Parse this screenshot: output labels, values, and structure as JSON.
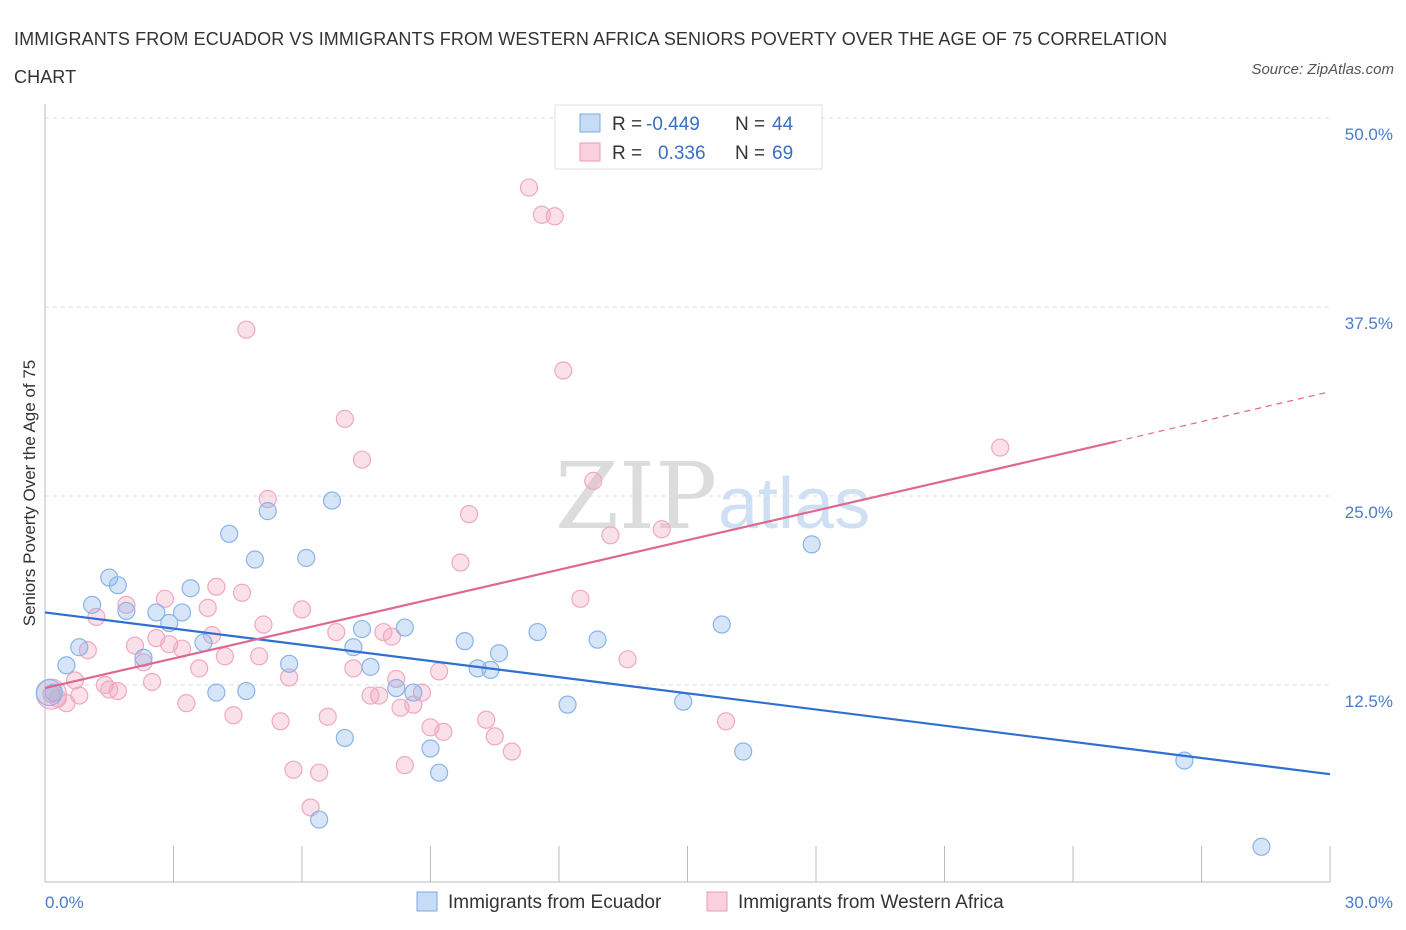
{
  "title": "IMMIGRANTS FROM ECUADOR VS IMMIGRANTS FROM WESTERN AFRICA SENIORS POVERTY OVER THE AGE OF 75 CORRELATION CHART",
  "source": "Source: ZipAtlas.com",
  "watermark": {
    "zip": "ZIP",
    "atlas": "atlas"
  },
  "chart_data": {
    "type": "scatter",
    "title": "IMMIGRANTS FROM ECUADOR VS IMMIGRANTS FROM WESTERN AFRICA SENIORS POVERTY OVER THE AGE OF 75 CORRELATION CHART",
    "xlabel": "",
    "ylabel": "Seniors Poverty Over the Age of 75",
    "xlim": [
      0,
      30
    ],
    "ylim": [
      0,
      50
    ],
    "x_tick_labels": {
      "left": "0.0%",
      "right": "30.0%"
    },
    "y_ticks": [
      {
        "value": 12.5,
        "label": "12.5%"
      },
      {
        "value": 25.0,
        "label": "25.0%"
      },
      {
        "value": 37.5,
        "label": "37.5%"
      },
      {
        "value": 50.0,
        "label": "50.0%"
      }
    ],
    "grid": true,
    "legend_placement": "top-center",
    "stats": [
      {
        "r_label": "R = ",
        "r": "-0.449",
        "n_label": "N = ",
        "n": "44"
      },
      {
        "r_label": "R = ",
        "r": "0.336",
        "n_label": "N = ",
        "n": "69"
      }
    ],
    "series": [
      {
        "name": "Immigrants from Ecuador",
        "color": "#8ab4e8",
        "line_color": "#2f6fd0",
        "trend": {
          "x0": 0,
          "y0": 17.3,
          "x1": 30,
          "y1": 6.6
        },
        "points": [
          [
            0.2,
            12.0
          ],
          [
            0.5,
            13.8
          ],
          [
            0.8,
            15.0
          ],
          [
            1.1,
            17.8
          ],
          [
            1.5,
            19.6
          ],
          [
            1.7,
            19.1
          ],
          [
            1.9,
            17.4
          ],
          [
            2.3,
            14.3
          ],
          [
            2.6,
            17.3
          ],
          [
            2.9,
            16.6
          ],
          [
            3.2,
            17.3
          ],
          [
            3.4,
            18.9
          ],
          [
            3.7,
            15.3
          ],
          [
            4.0,
            12.0
          ],
          [
            4.3,
            22.5
          ],
          [
            4.7,
            12.1
          ],
          [
            4.9,
            20.8
          ],
          [
            5.2,
            24.0
          ],
          [
            5.7,
            13.9
          ],
          [
            6.1,
            20.9
          ],
          [
            6.4,
            3.6
          ],
          [
            6.7,
            24.7
          ],
          [
            7.0,
            9.0
          ],
          [
            7.2,
            15.0
          ],
          [
            7.4,
            16.2
          ],
          [
            7.6,
            13.7
          ],
          [
            8.2,
            12.3
          ],
          [
            8.4,
            16.3
          ],
          [
            8.6,
            12.0
          ],
          [
            9.0,
            8.3
          ],
          [
            9.2,
            6.7
          ],
          [
            9.8,
            15.4
          ],
          [
            10.1,
            13.6
          ],
          [
            10.4,
            13.5
          ],
          [
            10.6,
            14.6
          ],
          [
            11.5,
            16.0
          ],
          [
            12.2,
            11.2
          ],
          [
            12.9,
            15.5
          ],
          [
            14.9,
            11.4
          ],
          [
            15.8,
            16.5
          ],
          [
            16.3,
            8.1
          ],
          [
            17.9,
            21.8
          ],
          [
            26.6,
            7.5
          ],
          [
            28.4,
            1.8
          ]
        ]
      },
      {
        "name": "Immigrants from Western Africa",
        "color": "#f0a8c0",
        "line_color": "#e06890",
        "trend": {
          "x0": 0,
          "y0": 12.3,
          "x1": 25.0,
          "y1": 28.6,
          "dash_x1": 30,
          "dash_y1": 31.9
        },
        "points": [
          [
            0.3,
            11.6
          ],
          [
            0.5,
            11.3
          ],
          [
            0.7,
            12.8
          ],
          [
            0.8,
            11.8
          ],
          [
            1.0,
            14.8
          ],
          [
            1.2,
            17.0
          ],
          [
            1.4,
            12.5
          ],
          [
            1.5,
            12.2
          ],
          [
            1.7,
            12.1
          ],
          [
            1.9,
            17.8
          ],
          [
            2.1,
            15.1
          ],
          [
            2.3,
            14.0
          ],
          [
            2.5,
            12.7
          ],
          [
            2.6,
            15.6
          ],
          [
            2.8,
            18.2
          ],
          [
            2.9,
            15.2
          ],
          [
            3.2,
            14.9
          ],
          [
            3.3,
            11.3
          ],
          [
            3.6,
            13.6
          ],
          [
            3.8,
            17.6
          ],
          [
            3.9,
            15.8
          ],
          [
            4.0,
            19.0
          ],
          [
            4.2,
            14.4
          ],
          [
            4.4,
            10.5
          ],
          [
            4.6,
            18.6
          ],
          [
            4.7,
            36.0
          ],
          [
            5.0,
            14.4
          ],
          [
            5.1,
            16.5
          ],
          [
            5.2,
            24.8
          ],
          [
            5.5,
            10.1
          ],
          [
            5.7,
            13.0
          ],
          [
            5.8,
            6.9
          ],
          [
            6.0,
            17.5
          ],
          [
            6.2,
            4.4
          ],
          [
            6.4,
            6.7
          ],
          [
            6.6,
            10.4
          ],
          [
            6.8,
            16.0
          ],
          [
            7.0,
            30.1
          ],
          [
            7.2,
            13.6
          ],
          [
            7.4,
            27.4
          ],
          [
            7.6,
            11.8
          ],
          [
            7.8,
            11.8
          ],
          [
            7.9,
            16.0
          ],
          [
            8.1,
            15.7
          ],
          [
            8.2,
            12.9
          ],
          [
            8.3,
            11.0
          ],
          [
            8.4,
            7.2
          ],
          [
            8.6,
            11.2
          ],
          [
            8.8,
            12.0
          ],
          [
            9.0,
            9.7
          ],
          [
            9.2,
            13.4
          ],
          [
            9.3,
            9.4
          ],
          [
            9.7,
            20.6
          ],
          [
            9.9,
            23.8
          ],
          [
            10.3,
            10.2
          ],
          [
            10.5,
            9.1
          ],
          [
            10.9,
            8.1
          ],
          [
            11.3,
            45.4
          ],
          [
            11.6,
            43.6
          ],
          [
            11.9,
            43.5
          ],
          [
            12.1,
            33.3
          ],
          [
            12.5,
            18.2
          ],
          [
            12.8,
            26.0
          ],
          [
            13.2,
            22.4
          ],
          [
            13.6,
            14.2
          ],
          [
            14.4,
            22.8
          ],
          [
            15.9,
            10.1
          ],
          [
            22.3,
            28.2
          ],
          [
            0.15,
            11.9
          ]
        ]
      }
    ]
  },
  "legend": {
    "items": [
      {
        "label": "Immigrants from Ecuador",
        "color": "#c6dcf6",
        "border": "#7aa8e0"
      },
      {
        "label": "Immigrants from Western Africa",
        "color": "#fbd0de",
        "border": "#ee99b6"
      }
    ]
  }
}
